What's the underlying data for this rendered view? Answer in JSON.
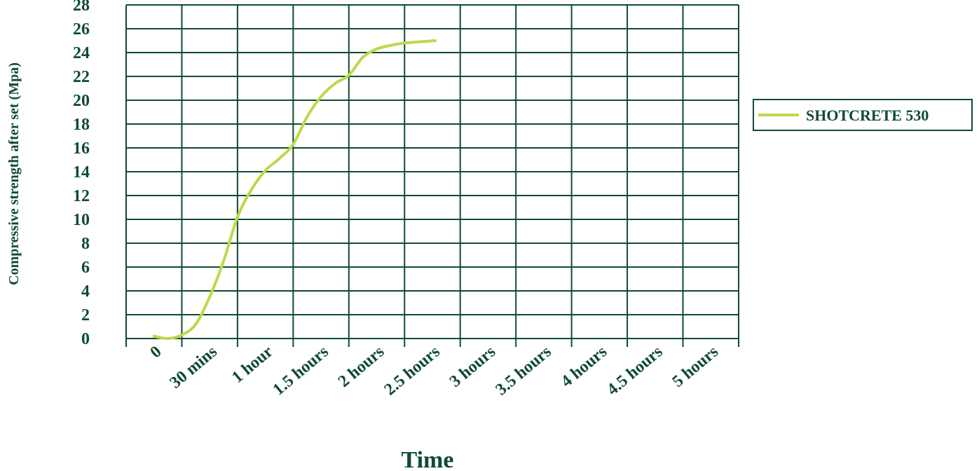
{
  "colors": {
    "grid": "#0f4a34",
    "text": "#0f4a34",
    "series": "#bcd94a",
    "background": "#ffffff"
  },
  "chart_data": {
    "type": "line",
    "title": "",
    "xlabel": "Time",
    "ylabel": "Compressive  strength  after set  (Mpa)",
    "categories": [
      "0",
      "30 mins",
      "1 hour",
      "1.5 hours",
      "2 hours",
      "2.5 hours",
      "3 hours",
      "3.5 hours",
      "4 hours",
      "4.5 hours",
      "5 hours"
    ],
    "ylim": [
      0,
      28
    ],
    "yticks": [
      0,
      2,
      4,
      6,
      8,
      10,
      12,
      14,
      16,
      18,
      20,
      22,
      24,
      26,
      28
    ],
    "grid": true,
    "legend": "right",
    "series": [
      {
        "name": "SHOTCRETE 530",
        "color": "#bcd94a",
        "x": [
          0,
          0.25,
          0.5,
          0.75,
          1.0,
          1.25,
          1.5,
          1.75,
          2.0,
          2.25,
          2.5,
          2.75,
          3.0,
          3.25,
          3.5,
          3.75,
          4.0,
          4.25,
          4.5,
          4.75,
          5.05
        ],
        "values": [
          0.2,
          0.0,
          0.3,
          1.2,
          3.5,
          6.5,
          10.2,
          12.5,
          14.1,
          15.1,
          16.3,
          18.6,
          20.3,
          21.4,
          22.1,
          23.6,
          24.3,
          24.6,
          24.8,
          24.9,
          25.0
        ]
      }
    ]
  }
}
